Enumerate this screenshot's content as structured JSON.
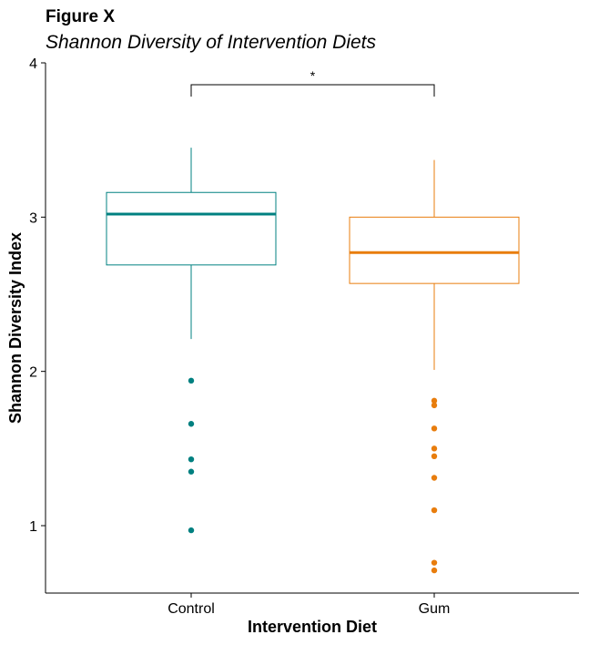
{
  "figure_label": "Figure X",
  "chart_data": {
    "type": "boxplot",
    "title": "Shannon Diversity of Intervention Diets",
    "xlabel": "Intervention Diet",
    "ylabel": "Shannon Diversity Index",
    "ylim": [
      0.57,
      4.0
    ],
    "yticks": [
      1,
      2,
      3,
      4
    ],
    "grid": false,
    "legend": "none",
    "categories": [
      "Control",
      "Gum"
    ],
    "series": [
      {
        "category": "Control",
        "color": "#008080",
        "whisker_low": 2.21,
        "q1": 2.69,
        "median": 3.02,
        "q3": 3.16,
        "whisker_high": 3.45,
        "outliers": [
          1.94,
          1.66,
          1.43,
          1.35,
          0.97
        ]
      },
      {
        "category": "Gum",
        "color": "#E87D0D",
        "whisker_low": 2.01,
        "q1": 2.57,
        "median": 2.77,
        "q3": 3.0,
        "whisker_high": 3.37,
        "outliers": [
          1.81,
          1.78,
          1.63,
          1.5,
          1.45,
          1.31,
          1.1,
          0.76,
          0.71
        ]
      }
    ],
    "significance": {
      "between": [
        "Control",
        "Gum"
      ],
      "label": "*"
    }
  }
}
